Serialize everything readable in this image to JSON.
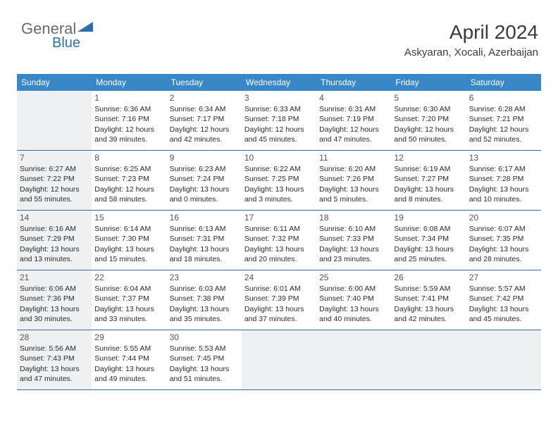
{
  "logo": {
    "text1": "General",
    "text2": "Blue"
  },
  "header": {
    "month": "April 2024",
    "location": "Askyaran, Xocali, Azerbaijan"
  },
  "colors": {
    "header_bg": "#3a87c8",
    "header_text": "#ffffff",
    "border": "#3a6a9a",
    "shade": "#eef0f1",
    "text": "#2a2a2a",
    "logo_gray": "#6a6a6a",
    "logo_blue": "#2f6faf"
  },
  "day_names": [
    "Sunday",
    "Monday",
    "Tuesday",
    "Wednesday",
    "Thursday",
    "Friday",
    "Saturday"
  ],
  "weeks": [
    [
      {
        "empty": true,
        "shade": true
      },
      {
        "num": "1",
        "sunrise": "6:36 AM",
        "sunset": "7:16 PM",
        "dl": "12 hours and 39 minutes."
      },
      {
        "num": "2",
        "sunrise": "6:34 AM",
        "sunset": "7:17 PM",
        "dl": "12 hours and 42 minutes."
      },
      {
        "num": "3",
        "sunrise": "6:33 AM",
        "sunset": "7:18 PM",
        "dl": "12 hours and 45 minutes."
      },
      {
        "num": "4",
        "sunrise": "6:31 AM",
        "sunset": "7:19 PM",
        "dl": "12 hours and 47 minutes."
      },
      {
        "num": "5",
        "sunrise": "6:30 AM",
        "sunset": "7:20 PM",
        "dl": "12 hours and 50 minutes."
      },
      {
        "num": "6",
        "sunrise": "6:28 AM",
        "sunset": "7:21 PM",
        "dl": "12 hours and 52 minutes."
      }
    ],
    [
      {
        "num": "7",
        "sunrise": "6:27 AM",
        "sunset": "7:22 PM",
        "dl": "12 hours and 55 minutes.",
        "shade": true
      },
      {
        "num": "8",
        "sunrise": "6:25 AM",
        "sunset": "7:23 PM",
        "dl": "12 hours and 58 minutes."
      },
      {
        "num": "9",
        "sunrise": "6:23 AM",
        "sunset": "7:24 PM",
        "dl": "13 hours and 0 minutes."
      },
      {
        "num": "10",
        "sunrise": "6:22 AM",
        "sunset": "7:25 PM",
        "dl": "13 hours and 3 minutes."
      },
      {
        "num": "11",
        "sunrise": "6:20 AM",
        "sunset": "7:26 PM",
        "dl": "13 hours and 5 minutes."
      },
      {
        "num": "12",
        "sunrise": "6:19 AM",
        "sunset": "7:27 PM",
        "dl": "13 hours and 8 minutes."
      },
      {
        "num": "13",
        "sunrise": "6:17 AM",
        "sunset": "7:28 PM",
        "dl": "13 hours and 10 minutes."
      }
    ],
    [
      {
        "num": "14",
        "sunrise": "6:16 AM",
        "sunset": "7:29 PM",
        "dl": "13 hours and 13 minutes.",
        "shade": true
      },
      {
        "num": "15",
        "sunrise": "6:14 AM",
        "sunset": "7:30 PM",
        "dl": "13 hours and 15 minutes."
      },
      {
        "num": "16",
        "sunrise": "6:13 AM",
        "sunset": "7:31 PM",
        "dl": "13 hours and 18 minutes."
      },
      {
        "num": "17",
        "sunrise": "6:11 AM",
        "sunset": "7:32 PM",
        "dl": "13 hours and 20 minutes."
      },
      {
        "num": "18",
        "sunrise": "6:10 AM",
        "sunset": "7:33 PM",
        "dl": "13 hours and 23 minutes."
      },
      {
        "num": "19",
        "sunrise": "6:08 AM",
        "sunset": "7:34 PM",
        "dl": "13 hours and 25 minutes."
      },
      {
        "num": "20",
        "sunrise": "6:07 AM",
        "sunset": "7:35 PM",
        "dl": "13 hours and 28 minutes."
      }
    ],
    [
      {
        "num": "21",
        "sunrise": "6:06 AM",
        "sunset": "7:36 PM",
        "dl": "13 hours and 30 minutes.",
        "shade": true
      },
      {
        "num": "22",
        "sunrise": "6:04 AM",
        "sunset": "7:37 PM",
        "dl": "13 hours and 33 minutes."
      },
      {
        "num": "23",
        "sunrise": "6:03 AM",
        "sunset": "7:38 PM",
        "dl": "13 hours and 35 minutes."
      },
      {
        "num": "24",
        "sunrise": "6:01 AM",
        "sunset": "7:39 PM",
        "dl": "13 hours and 37 minutes."
      },
      {
        "num": "25",
        "sunrise": "6:00 AM",
        "sunset": "7:40 PM",
        "dl": "13 hours and 40 minutes."
      },
      {
        "num": "26",
        "sunrise": "5:59 AM",
        "sunset": "7:41 PM",
        "dl": "13 hours and 42 minutes."
      },
      {
        "num": "27",
        "sunrise": "5:57 AM",
        "sunset": "7:42 PM",
        "dl": "13 hours and 45 minutes."
      }
    ],
    [
      {
        "num": "28",
        "sunrise": "5:56 AM",
        "sunset": "7:43 PM",
        "dl": "13 hours and 47 minutes.",
        "shade": true
      },
      {
        "num": "29",
        "sunrise": "5:55 AM",
        "sunset": "7:44 PM",
        "dl": "13 hours and 49 minutes."
      },
      {
        "num": "30",
        "sunrise": "5:53 AM",
        "sunset": "7:45 PM",
        "dl": "13 hours and 51 minutes."
      },
      {
        "empty": true,
        "shade": true
      },
      {
        "empty": true,
        "shade": true
      },
      {
        "empty": true,
        "shade": true
      },
      {
        "empty": true,
        "shade": true
      }
    ]
  ],
  "labels": {
    "sunrise": "Sunrise:",
    "sunset": "Sunset:",
    "daylight": "Daylight:"
  }
}
